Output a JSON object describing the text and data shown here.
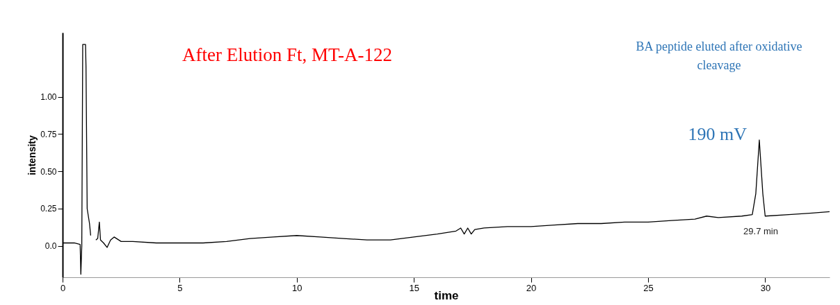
{
  "chart_data": {
    "type": "line",
    "title": "After Elution Ft, MT-A-122",
    "xlabel": "time",
    "ylabel": "intensity",
    "x": [
      0,
      0.5,
      0.75,
      0.78,
      0.82,
      0.86,
      0.98,
      1.0,
      1.05,
      1.15,
      1.2,
      1.25,
      1.35,
      1.42,
      1.5,
      1.57,
      1.62,
      1.75,
      1.9,
      2.05,
      2.2,
      2.5,
      3,
      4,
      5,
      6,
      7,
      8,
      9,
      10,
      11,
      12,
      13,
      14,
      15,
      16,
      16.8,
      17,
      17.15,
      17.3,
      17.45,
      17.6,
      18,
      19,
      20,
      21,
      22,
      23,
      24,
      25,
      26,
      27,
      27.5,
      28,
      29,
      29.45,
      29.6,
      29.75,
      29.9,
      30,
      31,
      32,
      32.75
    ],
    "values": [
      0.02,
      0.02,
      0.01,
      -0.19,
      0.0,
      1.35,
      1.35,
      1.2,
      0.25,
      0.15,
      0.07,
      null,
      null,
      0.04,
      0.05,
      0.16,
      0.04,
      0.02,
      -0.01,
      0.04,
      0.06,
      0.03,
      0.03,
      0.02,
      0.02,
      0.02,
      0.03,
      0.05,
      0.06,
      0.07,
      0.06,
      0.05,
      0.04,
      0.04,
      0.06,
      0.08,
      0.1,
      0.12,
      0.08,
      0.12,
      0.08,
      0.11,
      0.12,
      0.13,
      0.13,
      0.14,
      0.15,
      0.15,
      0.16,
      0.16,
      0.17,
      0.18,
      0.2,
      0.19,
      0.2,
      0.21,
      0.35,
      0.71,
      0.35,
      0.2,
      0.21,
      0.22,
      0.23
    ],
    "color": "#000000",
    "line_style": "solid",
    "marker": "none",
    "xlim": [
      0,
      32.75
    ],
    "ylim": [
      -0.21,
      1.43
    ],
    "xticks": [
      0,
      5,
      10,
      15,
      20,
      25,
      30
    ],
    "yticks": [
      {
        "value": 0,
        "label": "0.0"
      },
      0.25,
      {
        "value": 0.5,
        "label": "0.50"
      },
      0.75,
      {
        "value": 1,
        "label": "1.00"
      }
    ],
    "annotations": [
      "BA peptide eluted after oxidative cleavage",
      {
        "text": "190  mV",
        "x": 29.75,
        "y": 0.71
      },
      "29.7 min"
    ]
  }
}
